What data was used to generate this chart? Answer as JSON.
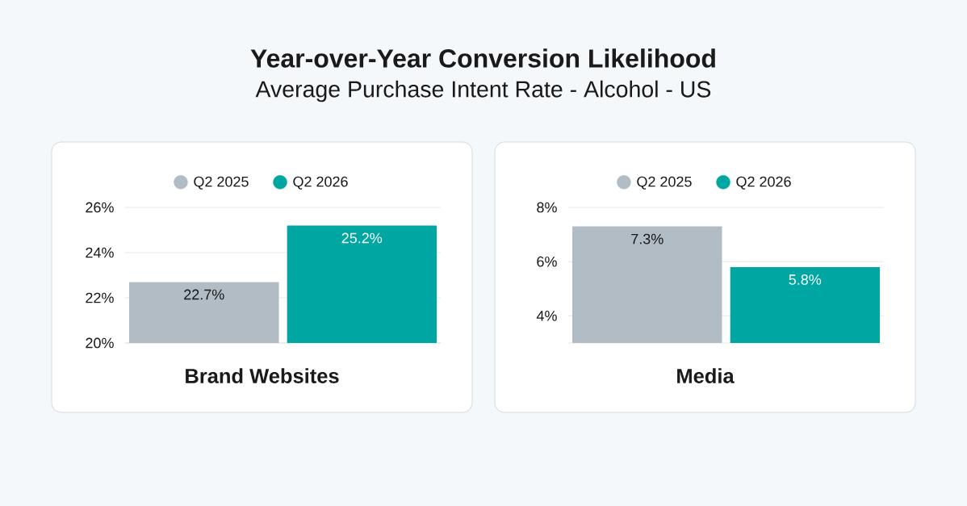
{
  "chart_data": [
    {
      "type": "bar",
      "title": "Year-over-Year Conversion Likelihood",
      "subtitle": "Average Purchase Intent Rate - Alcohol - US",
      "xlabel": "Brand Websites",
      "categories": [
        null,
        null
      ],
      "series": [
        {
          "name": "Q2 2025",
          "color": "#b1bcc4",
          "values": [
            22.7,
            null
          ],
          "value_labels": [
            "22.7%",
            null
          ]
        },
        {
          "name": "Q2 2026",
          "color": "#00a6a2",
          "values": [
            null,
            25.2
          ],
          "value_labels": [
            null,
            "25.2%"
          ]
        }
      ],
      "ylim": [
        20,
        26
      ],
      "yticks": [
        {
          "value": 20,
          "label": "20%"
        },
        {
          "value": 22,
          "label": "22%"
        },
        {
          "value": 24,
          "label": "24%"
        },
        {
          "value": 26,
          "label": "26%"
        }
      ],
      "grid": "y",
      "legend": "top"
    },
    {
      "type": "bar",
      "xlabel": "Media",
      "categories": [
        null,
        null
      ],
      "series": [
        {
          "name": "Q2 2025",
          "color": "#b1bcc4",
          "values": [
            7.3,
            null
          ],
          "value_labels": [
            "7.3%",
            null
          ]
        },
        {
          "name": "Q2 2026",
          "color": "#00a6a2",
          "values": [
            null,
            5.8
          ],
          "value_labels": [
            null,
            "5.8%"
          ]
        }
      ],
      "ylim": [
        3,
        8
      ],
      "yticks": [
        {
          "value": 4,
          "label": "4%"
        },
        {
          "value": 6,
          "label": "6%"
        },
        {
          "value": 8,
          "label": "8%"
        }
      ],
      "grid": "y",
      "legend": "top"
    }
  ]
}
